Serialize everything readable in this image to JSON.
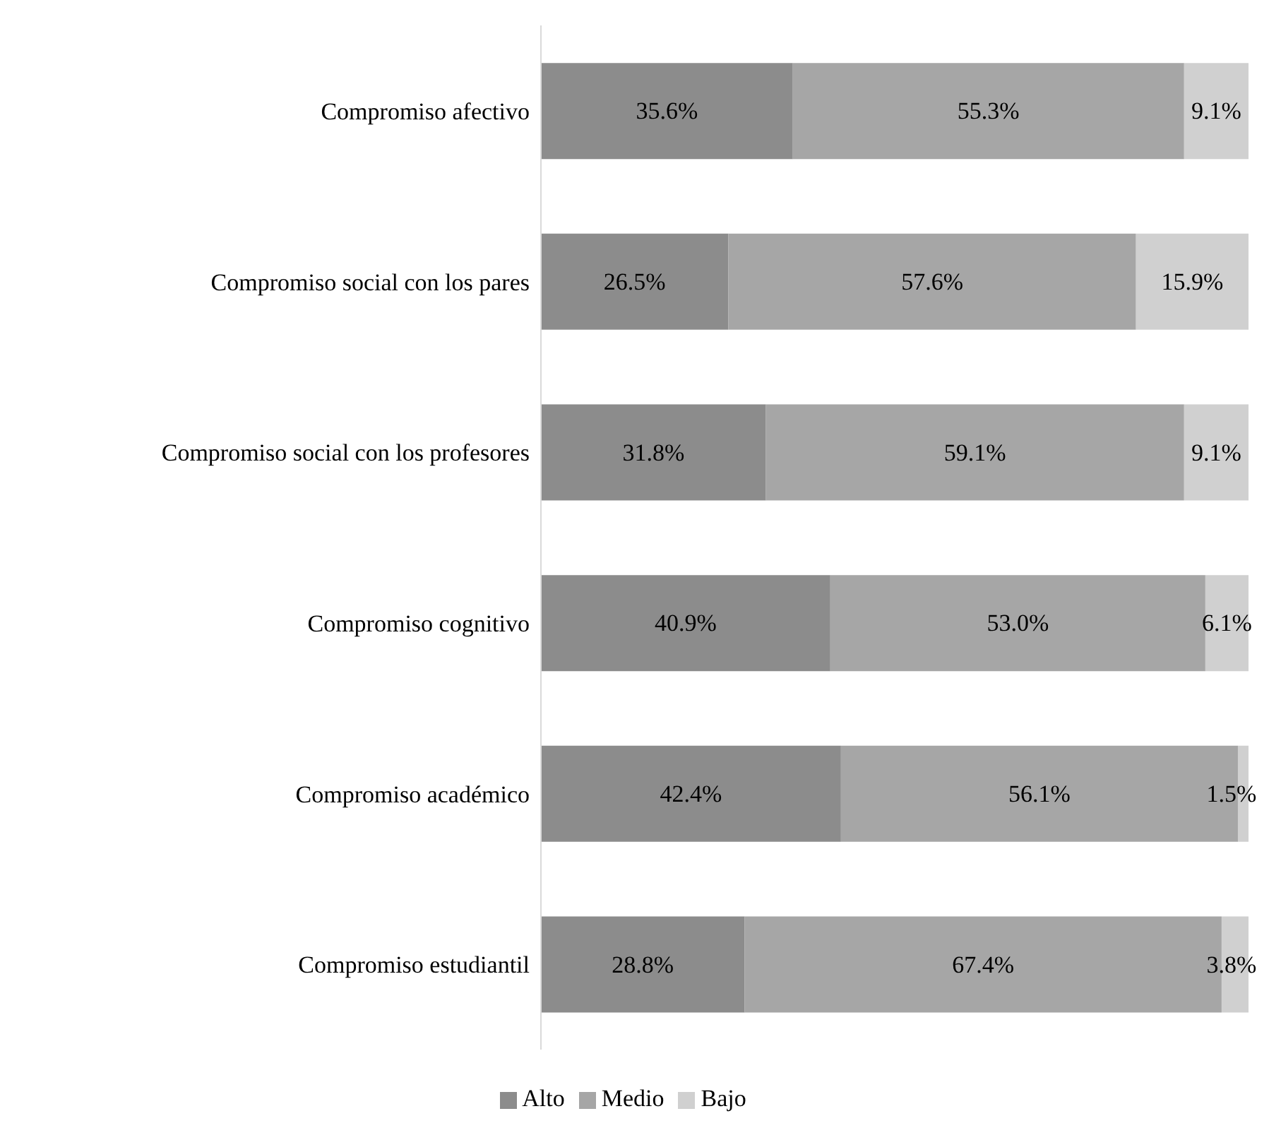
{
  "chart_data": {
    "type": "bar",
    "orientation": "horizontal",
    "stacked": true,
    "categories": [
      "Compromiso afectivo",
      "Compromiso social con los pares",
      "Compromiso social con los profesores",
      "Compromiso cognitivo",
      "Compromiso académico",
      "Compromiso estudiantil"
    ],
    "series": [
      {
        "name": "Alto",
        "color": "#8c8c8c",
        "values": [
          35.6,
          26.5,
          31.8,
          40.9,
          42.4,
          28.8
        ],
        "value_labels": [
          "35.6%",
          "26.5%",
          "31.8%",
          "40.9%",
          "42.4%",
          "28.8%"
        ]
      },
      {
        "name": "Medio",
        "color": "#a6a6a6",
        "values": [
          55.3,
          57.6,
          59.1,
          53.0,
          56.1,
          67.4
        ],
        "value_labels": [
          "55.3%",
          "57.6%",
          "59.1%",
          "53.0%",
          "56.1%",
          "67.4%"
        ]
      },
      {
        "name": "Bajo",
        "color": "#d0d0d0",
        "values": [
          9.1,
          15.9,
          9.1,
          6.1,
          1.5,
          3.8
        ],
        "value_labels": [
          "9.1%",
          "15.9%",
          "9.1%",
          "6.1%",
          "1.5%",
          "3.8%"
        ]
      }
    ],
    "xlim": [
      0,
      100
    ],
    "tick_labels": "y",
    "legend": "bottom",
    "grid": false
  }
}
